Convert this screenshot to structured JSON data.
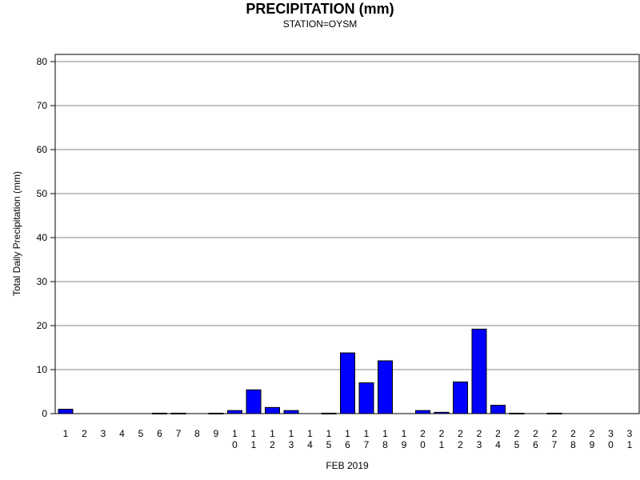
{
  "chart_data": {
    "type": "bar",
    "title": "PRECIPITATION (mm)",
    "subtitle": "STATION=OYSM",
    "xlabel": "FEB 2019",
    "ylabel": "Total Daily Precipitation (mm)",
    "ylim": [
      0,
      80
    ],
    "yticks": [
      0,
      10,
      20,
      30,
      40,
      50,
      60,
      70,
      80
    ],
    "grid": true,
    "legend": "none",
    "bar_color": "#0000ff",
    "bar_edge_color": "#000000",
    "categories": [
      "1",
      "2",
      "3",
      "4",
      "5",
      "6",
      "7",
      "8",
      "9",
      "10",
      "11",
      "12",
      "13",
      "14",
      "15",
      "16",
      "17",
      "18",
      "19",
      "20",
      "21",
      "22",
      "23",
      "24",
      "25",
      "26",
      "27",
      "28",
      "29",
      "30",
      "31"
    ],
    "values": [
      1.0,
      0,
      0,
      0,
      0,
      0.1,
      0.1,
      0,
      0.1,
      0.7,
      5.4,
      1.4,
      0.7,
      0,
      0.1,
      13.8,
      7.0,
      12.0,
      0,
      0.7,
      0.3,
      7.2,
      19.2,
      1.9,
      0.1,
      0,
      0.1,
      0,
      0,
      0,
      0
    ]
  }
}
